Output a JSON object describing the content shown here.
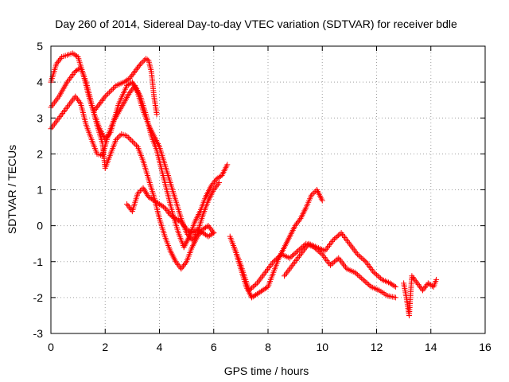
{
  "chart_data": {
    "type": "scatter",
    "title": "Day 260 of 2014, Sidereal Day-to-day VTEC variation (SDTVAR) for receiver bdle",
    "xlabel": "GPS time / hours",
    "ylabel": "SDTVAR / TECUs",
    "xlim": [
      0,
      16
    ],
    "ylim": [
      -3,
      5
    ],
    "xticks": [
      0,
      2,
      4,
      6,
      8,
      10,
      12,
      14,
      16
    ],
    "yticks": [
      -3,
      -2,
      -1,
      0,
      1,
      2,
      3,
      4,
      5
    ],
    "grid": true,
    "marker": "+",
    "color": "#ff0000",
    "series": [
      {
        "x": [
          0.0,
          0.3,
          0.6,
          0.9,
          1.1,
          1.3,
          1.5,
          1.7,
          1.9,
          2.1,
          2.3,
          2.6,
          2.9,
          3.1,
          3.3,
          3.5,
          3.7,
          3.9,
          4.1,
          4.3,
          4.5,
          4.7,
          4.9,
          5.1,
          5.3,
          5.5,
          5.7,
          5.9,
          6.1,
          6.3,
          6.5
        ],
        "y": [
          2.7,
          3.0,
          3.3,
          3.6,
          3.4,
          2.8,
          2.4,
          2.0,
          1.95,
          2.5,
          2.9,
          3.3,
          3.7,
          3.9,
          3.6,
          3.1,
          2.5,
          2.1,
          1.5,
          0.9,
          0.3,
          -0.2,
          -0.6,
          -0.3,
          0.1,
          0.4,
          0.8,
          1.1,
          1.3,
          1.4,
          1.7
        ]
      },
      {
        "x": [
          0.0,
          0.2,
          0.4,
          0.6,
          0.8,
          1.0,
          1.2,
          1.4,
          1.6,
          1.8,
          2.0,
          2.2,
          2.5,
          2.8,
          3.0,
          3.2,
          3.4,
          3.6,
          3.8,
          4.0,
          4.2,
          4.4,
          4.6,
          4.8,
          5.0,
          5.2,
          5.4,
          5.6,
          5.8,
          6.0,
          6.2
        ],
        "y": [
          4.0,
          4.5,
          4.7,
          4.75,
          4.8,
          4.7,
          4.2,
          3.6,
          3.1,
          2.7,
          2.4,
          2.6,
          3.4,
          3.9,
          4.0,
          3.7,
          3.2,
          2.8,
          2.5,
          2.2,
          1.7,
          1.2,
          0.7,
          0.2,
          -0.2,
          -0.4,
          -0.2,
          0.3,
          0.7,
          1.0,
          1.2
        ]
      },
      {
        "x": [
          0.0,
          0.3,
          0.6,
          0.9,
          1.1,
          1.3,
          1.5,
          1.7,
          1.9,
          2.0,
          2.2,
          2.4,
          2.6,
          2.8,
          3.0,
          3.2,
          3.4,
          3.6,
          3.8,
          4.0,
          4.2,
          4.4,
          4.6,
          4.8,
          5.0,
          5.2,
          5.4,
          5.6,
          5.8,
          6.0
        ],
        "y": [
          3.3,
          3.6,
          4.0,
          4.3,
          4.4,
          4.0,
          3.4,
          2.8,
          2.3,
          1.6,
          2.0,
          2.4,
          2.55,
          2.5,
          2.35,
          2.2,
          1.8,
          1.3,
          0.8,
          0.2,
          -0.3,
          -0.7,
          -1.0,
          -1.2,
          -1.0,
          -0.6,
          -0.3,
          -0.1,
          0.0,
          -0.2
        ]
      },
      {
        "x": [
          1.6,
          2.0,
          2.4,
          2.7,
          2.9,
          3.1,
          3.3,
          3.5,
          3.6,
          3.7,
          3.8,
          3.9
        ],
        "y": [
          3.2,
          3.6,
          3.9,
          4.0,
          4.1,
          4.3,
          4.5,
          4.65,
          4.6,
          4.3,
          3.6,
          3.1
        ]
      },
      {
        "x": [
          2.8,
          3.0,
          3.2,
          3.4,
          3.6,
          3.8,
          4.0,
          4.2,
          4.4,
          4.6,
          4.8,
          5.0,
          5.2,
          5.4,
          5.6,
          5.8,
          6.0
        ],
        "y": [
          0.6,
          0.4,
          0.9,
          1.05,
          0.8,
          0.7,
          0.6,
          0.5,
          0.3,
          0.2,
          0.1,
          -0.1,
          -0.2,
          -0.1,
          -0.2,
          -0.3,
          -0.2
        ]
      },
      {
        "x": [
          6.6,
          6.8,
          7.0,
          7.2,
          7.4,
          7.6,
          7.8,
          8.0,
          8.2,
          8.4,
          8.6,
          8.8,
          9.0,
          9.2,
          9.4,
          9.6,
          9.8,
          10.0
        ],
        "y": [
          -0.3,
          -0.7,
          -1.2,
          -1.7,
          -2.0,
          -1.9,
          -1.8,
          -1.7,
          -1.3,
          -0.9,
          -0.6,
          -0.3,
          0.0,
          0.2,
          0.5,
          0.85,
          1.0,
          0.7
        ]
      },
      {
        "x": [
          6.7,
          7.0,
          7.3,
          7.6,
          7.9,
          8.2,
          8.5,
          8.8,
          9.1,
          9.4,
          9.7,
          10.0,
          10.3,
          10.6,
          10.9,
          11.2,
          11.5,
          11.8,
          12.1,
          12.4,
          12.7
        ],
        "y": [
          -0.5,
          -1.1,
          -1.8,
          -1.6,
          -1.3,
          -1.0,
          -0.8,
          -0.9,
          -0.7,
          -0.5,
          -0.6,
          -0.8,
          -1.1,
          -0.9,
          -1.2,
          -1.3,
          -1.5,
          -1.7,
          -1.8,
          -1.95,
          -2.0
        ]
      },
      {
        "x": [
          8.6,
          8.9,
          9.2,
          9.5,
          9.8,
          10.1,
          10.4,
          10.7,
          11.0,
          11.3,
          11.6,
          11.9,
          12.2,
          12.5,
          12.7
        ],
        "y": [
          -1.4,
          -1.1,
          -0.8,
          -0.5,
          -0.6,
          -0.7,
          -0.4,
          -0.2,
          -0.5,
          -0.8,
          -1.0,
          -1.3,
          -1.5,
          -1.6,
          -1.7
        ]
      },
      {
        "x": [
          13.0,
          13.1,
          13.2,
          13.3,
          13.5,
          13.7,
          13.9,
          14.1,
          14.2
        ],
        "y": [
          -1.6,
          -2.0,
          -2.5,
          -1.4,
          -1.6,
          -1.8,
          -1.6,
          -1.7,
          -1.5
        ]
      }
    ]
  }
}
